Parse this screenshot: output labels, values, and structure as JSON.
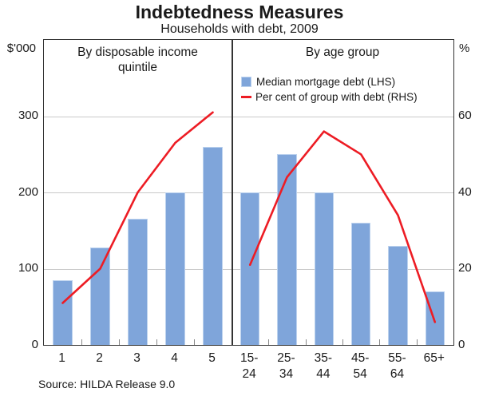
{
  "header": {
    "title": "Indebtedness Measures",
    "subtitle": "Households with debt, 2009"
  },
  "axes": {
    "left_unit": "$'000",
    "right_unit": "%",
    "left_ticks": [
      300,
      200,
      100,
      0
    ],
    "right_ticks": [
      60,
      40,
      20,
      0
    ],
    "lhs_range": [
      0,
      400
    ],
    "rhs_range": [
      0,
      80
    ]
  },
  "legend": {
    "bar_label": "Median mortgage debt (LHS)",
    "line_label": "Per cent of group with debt (RHS)"
  },
  "source": "Source: HILDA Release 9.0",
  "colors": {
    "bar_fill": "#7fa5da",
    "bar_border": "#bcd2ee",
    "line": "#ed1c24",
    "grid": "#c9c9c9",
    "frame": "#333333"
  },
  "chart_data": [
    {
      "type": "bar+line",
      "title": "By disposable income\nquintile",
      "categories": [
        "1",
        "2",
        "3",
        "4",
        "5"
      ],
      "category_display": [
        "1",
        "2",
        "3",
        "4",
        "5"
      ],
      "series": [
        {
          "name": "Median mortgage debt (LHS)",
          "type": "bar",
          "axis": "LHS $'000",
          "values": [
            85,
            128,
            165,
            200,
            260
          ]
        },
        {
          "name": "Per cent of group with debt (RHS)",
          "type": "line",
          "axis": "RHS %",
          "values": [
            11,
            20,
            40,
            53,
            61
          ]
        }
      ],
      "lhs_range": [
        0,
        400
      ],
      "rhs_range": [
        0,
        80
      ],
      "grid": true,
      "legend_position": "top-right-panel"
    },
    {
      "type": "bar+line",
      "title": "By age group",
      "categories": [
        "15-24",
        "25-34",
        "35-44",
        "45-54",
        "55-64",
        "65+"
      ],
      "category_display": [
        "15-\n24",
        "25-\n34",
        "35-\n44",
        "45-\n54",
        "55-\n64",
        "65+"
      ],
      "series": [
        {
          "name": "Median mortgage debt (LHS)",
          "type": "bar",
          "axis": "LHS $'000",
          "values": [
            200,
            250,
            200,
            160,
            130,
            70
          ]
        },
        {
          "name": "Per cent of group with debt (RHS)",
          "type": "line",
          "axis": "RHS %",
          "values": [
            21,
            44,
            56,
            50,
            34,
            6
          ]
        }
      ],
      "lhs_range": [
        0,
        400
      ],
      "rhs_range": [
        0,
        80
      ],
      "grid": true
    }
  ]
}
